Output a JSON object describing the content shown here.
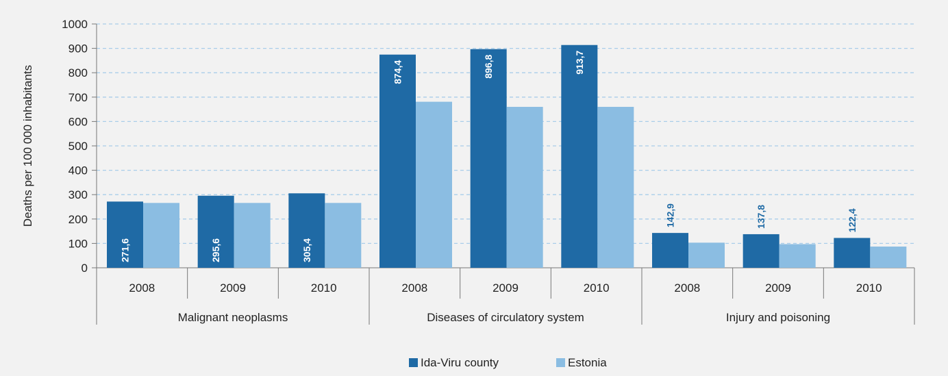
{
  "chart_data": {
    "type": "bar",
    "ylabel": "Deaths per 100 000 inhabitants",
    "xlabel": "",
    "ylim": [
      0,
      1000
    ],
    "yticks": [
      0,
      100,
      200,
      300,
      400,
      500,
      600,
      700,
      800,
      900,
      1000
    ],
    "grid": true,
    "legend_position": "bottom",
    "groups": [
      "Malignant neoplasms",
      "Diseases of circulatory system",
      "Injury and poisoning"
    ],
    "categories": [
      "2008",
      "2009",
      "2010",
      "2008",
      "2009",
      "2010",
      "2008",
      "2009",
      "2010"
    ],
    "series": [
      {
        "name": "Ida-Viru county",
        "color": "#1f6aa5",
        "values": [
          271.6,
          295.6,
          305.4,
          874.4,
          896.8,
          913.7,
          142.9,
          137.8,
          122.4
        ],
        "labels": [
          "271,6",
          "295,6",
          "305,4",
          "874,4",
          "896,8",
          "913,7",
          "142,9",
          "137,8",
          "122,4"
        ]
      },
      {
        "name": "Estonia",
        "color": "#8bbde2",
        "values": [
          266,
          266,
          266,
          681,
          660,
          660,
          103,
          97,
          87
        ]
      }
    ]
  }
}
